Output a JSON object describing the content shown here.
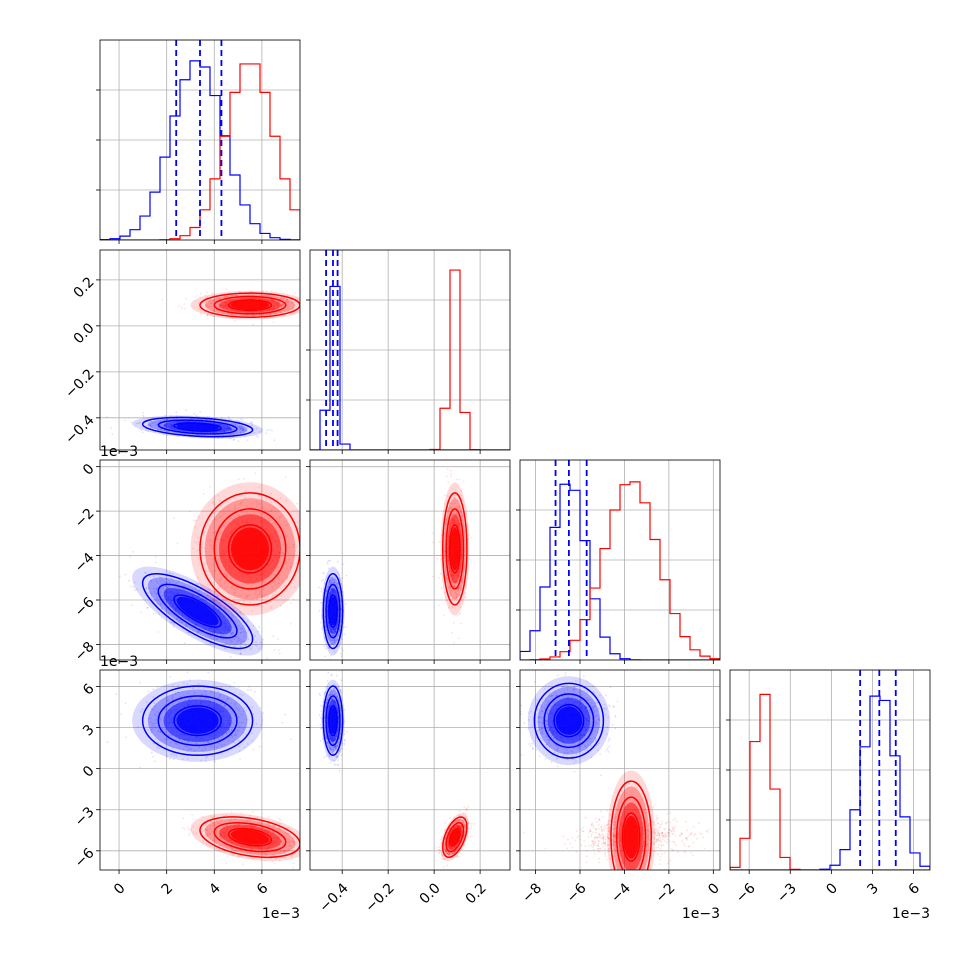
{
  "chart_data": {
    "type": "corner",
    "colors": {
      "series_a": "#0000ff",
      "series_b": "#ff0000"
    },
    "grid": true,
    "parameters": [
      {
        "id": "p1",
        "range": [
          -0.0008,
          0.0076
        ],
        "ticks": [
          0,
          0.002,
          0.004,
          0.006
        ],
        "tick_labels": [
          "0",
          "2",
          "4",
          "6"
        ],
        "offset_label": "1e−3",
        "series_a_mean": 0.0033,
        "series_a_sd": 0.0011,
        "series_b_mean": 0.0055,
        "series_b_sd": 0.001,
        "quantiles": [
          0.0024,
          0.0034,
          0.0043
        ]
      },
      {
        "id": "p2",
        "range": [
          -0.54,
          0.33
        ],
        "ticks": [
          -0.4,
          -0.2,
          0.0,
          0.2
        ],
        "tick_labels": [
          "−0.4",
          "−0.2",
          "0.0",
          "0.2"
        ],
        "offset_label": "",
        "series_a_mean": -0.44,
        "series_a_sd": 0.02,
        "series_b_mean": 0.09,
        "series_b_sd": 0.025,
        "quantiles": [
          -0.47,
          -0.44,
          -0.42
        ]
      },
      {
        "id": "p3",
        "range": [
          -0.0087,
          0.0003
        ],
        "ticks": [
          -0.008,
          -0.006,
          -0.004,
          -0.002,
          0
        ],
        "tick_labels": [
          "−8",
          "−6",
          "−4",
          "−2",
          "0"
        ],
        "offset_label": "1e−3",
        "series_a_mean": -0.0065,
        "series_a_sd": 0.0008,
        "series_b_mean": -0.0037,
        "series_b_sd": 0.0012,
        "quantiles": [
          -0.0071,
          -0.0065,
          -0.0057
        ]
      },
      {
        "id": "p4",
        "range": [
          -0.0074,
          0.0072
        ],
        "ticks": [
          -0.006,
          -0.003,
          0,
          0.003,
          0.006
        ],
        "tick_labels": [
          "−6",
          "−3",
          "0",
          "3",
          "6"
        ],
        "offset_label": "1e−3",
        "series_a_mean": 0.0035,
        "series_a_sd": 0.0012,
        "series_b_mean": -0.005,
        "series_b_sd": 0.0007,
        "quantiles": [
          0.0021,
          0.0035,
          0.0047
        ]
      }
    ],
    "correlations": {
      "1-0": {
        "series_a": -0.3,
        "series_b": 0.0
      },
      "2-0": {
        "series_a": -0.75,
        "series_b": 0.0
      },
      "2-1": {
        "series_a": 0.0,
        "series_b": 0.0
      },
      "3-0": {
        "series_a": 0.0,
        "series_b": -0.35
      },
      "3-1": {
        "series_a": 0.0,
        "series_b": 0.5
      },
      "3-2": {
        "series_a": 0.0,
        "series_b": 0.0
      }
    }
  }
}
